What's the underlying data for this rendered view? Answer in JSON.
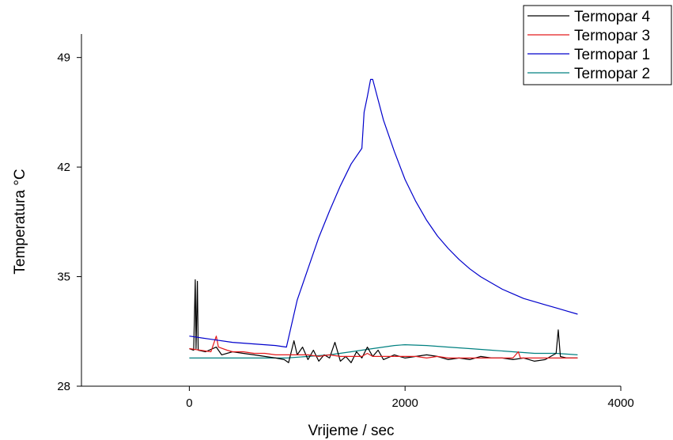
{
  "chart_data": {
    "type": "line",
    "xlabel": "Vrijeme / sec",
    "ylabel": "Temperatura °C",
    "xlim": [
      -1000,
      4000
    ],
    "ylim": [
      28,
      50.5
    ],
    "x_ticks": [
      0,
      2000,
      4000
    ],
    "y_ticks": [
      28,
      35,
      42,
      49
    ],
    "grid": false,
    "legend_position": "top-right",
    "series": [
      {
        "name": "Termopar 4",
        "color": "#000000",
        "points": [
          [
            0,
            30.4
          ],
          [
            40,
            30.3
          ],
          [
            55,
            34.8
          ],
          [
            62,
            30.4
          ],
          [
            75,
            34.7
          ],
          [
            82,
            30.3
          ],
          [
            150,
            30.2
          ],
          [
            250,
            30.5
          ],
          [
            300,
            30.0
          ],
          [
            400,
            30.2
          ],
          [
            500,
            30.1
          ],
          [
            600,
            30.0
          ],
          [
            700,
            29.9
          ],
          [
            800,
            29.8
          ],
          [
            880,
            29.7
          ],
          [
            920,
            29.5
          ],
          [
            970,
            30.9
          ],
          [
            1000,
            30.0
          ],
          [
            1050,
            30.5
          ],
          [
            1100,
            29.7
          ],
          [
            1150,
            30.3
          ],
          [
            1200,
            29.6
          ],
          [
            1250,
            30.0
          ],
          [
            1300,
            29.8
          ],
          [
            1350,
            30.8
          ],
          [
            1400,
            29.6
          ],
          [
            1450,
            29.9
          ],
          [
            1500,
            29.5
          ],
          [
            1550,
            30.2
          ],
          [
            1600,
            29.8
          ],
          [
            1650,
            30.5
          ],
          [
            1700,
            29.9
          ],
          [
            1750,
            30.3
          ],
          [
            1800,
            29.7
          ],
          [
            1900,
            30.0
          ],
          [
            2000,
            29.8
          ],
          [
            2100,
            29.9
          ],
          [
            2200,
            30.0
          ],
          [
            2300,
            29.9
          ],
          [
            2400,
            29.7
          ],
          [
            2500,
            29.8
          ],
          [
            2600,
            29.7
          ],
          [
            2700,
            29.9
          ],
          [
            2800,
            29.8
          ],
          [
            2900,
            29.8
          ],
          [
            3000,
            29.7
          ],
          [
            3100,
            29.8
          ],
          [
            3200,
            29.6
          ],
          [
            3300,
            29.7
          ],
          [
            3350,
            29.9
          ],
          [
            3400,
            30.1
          ],
          [
            3420,
            31.6
          ],
          [
            3440,
            29.9
          ],
          [
            3500,
            29.8
          ],
          [
            3600,
            29.8
          ]
        ]
      },
      {
        "name": "Termopar 3",
        "color": "#e31a1c",
        "points": [
          [
            0,
            30.4
          ],
          [
            100,
            30.3
          ],
          [
            200,
            30.2
          ],
          [
            250,
            31.2
          ],
          [
            270,
            30.5
          ],
          [
            350,
            30.3
          ],
          [
            400,
            30.2
          ],
          [
            500,
            30.2
          ],
          [
            600,
            30.1
          ],
          [
            700,
            30.1
          ],
          [
            800,
            30.0
          ],
          [
            900,
            30.0
          ],
          [
            1000,
            30.0
          ],
          [
            1100,
            30.0
          ],
          [
            1200,
            29.9
          ],
          [
            1300,
            30.0
          ],
          [
            1400,
            29.9
          ],
          [
            1500,
            29.9
          ],
          [
            1600,
            29.9
          ],
          [
            1650,
            30.1
          ],
          [
            1700,
            29.9
          ],
          [
            1800,
            29.9
          ],
          [
            1900,
            29.9
          ],
          [
            2000,
            29.9
          ],
          [
            2100,
            29.9
          ],
          [
            2200,
            29.8
          ],
          [
            2300,
            29.9
          ],
          [
            2400,
            29.8
          ],
          [
            2500,
            29.8
          ],
          [
            2600,
            29.8
          ],
          [
            2700,
            29.8
          ],
          [
            2800,
            29.8
          ],
          [
            2900,
            29.8
          ],
          [
            3000,
            29.8
          ],
          [
            3050,
            30.2
          ],
          [
            3070,
            29.8
          ],
          [
            3200,
            29.8
          ],
          [
            3300,
            29.8
          ],
          [
            3400,
            29.8
          ],
          [
            3500,
            29.8
          ],
          [
            3600,
            29.8
          ]
        ]
      },
      {
        "name": "Termopar 1",
        "color": "#0000cc",
        "points": [
          [
            0,
            31.2
          ],
          [
            200,
            31.0
          ],
          [
            400,
            30.8
          ],
          [
            600,
            30.7
          ],
          [
            800,
            30.6
          ],
          [
            900,
            30.5
          ],
          [
            1000,
            33.5
          ],
          [
            1100,
            35.5
          ],
          [
            1200,
            37.5
          ],
          [
            1300,
            39.2
          ],
          [
            1400,
            40.8
          ],
          [
            1500,
            42.2
          ],
          [
            1600,
            43.2
          ],
          [
            1620,
            45.5
          ],
          [
            1650,
            46.5
          ],
          [
            1680,
            47.6
          ],
          [
            1700,
            47.6
          ],
          [
            1750,
            46.3
          ],
          [
            1800,
            45.0
          ],
          [
            1900,
            43.0
          ],
          [
            2000,
            41.2
          ],
          [
            2100,
            39.8
          ],
          [
            2200,
            38.6
          ],
          [
            2300,
            37.6
          ],
          [
            2400,
            36.8
          ],
          [
            2500,
            36.1
          ],
          [
            2600,
            35.5
          ],
          [
            2700,
            35.0
          ],
          [
            2800,
            34.6
          ],
          [
            2900,
            34.2
          ],
          [
            3000,
            33.9
          ],
          [
            3100,
            33.6
          ],
          [
            3200,
            33.4
          ],
          [
            3300,
            33.2
          ],
          [
            3400,
            33.0
          ],
          [
            3500,
            32.8
          ],
          [
            3600,
            32.6
          ]
        ]
      },
      {
        "name": "Termopar 2",
        "color": "#008080",
        "points": [
          [
            0,
            29.8
          ],
          [
            300,
            29.8
          ],
          [
            600,
            29.8
          ],
          [
            900,
            29.8
          ],
          [
            1100,
            29.9
          ],
          [
            1300,
            30.0
          ],
          [
            1500,
            30.2
          ],
          [
            1700,
            30.4
          ],
          [
            1900,
            30.6
          ],
          [
            2000,
            30.65
          ],
          [
            2200,
            30.6
          ],
          [
            2400,
            30.5
          ],
          [
            2600,
            30.4
          ],
          [
            2800,
            30.3
          ],
          [
            3000,
            30.2
          ],
          [
            3200,
            30.1
          ],
          [
            3400,
            30.1
          ],
          [
            3600,
            30.0
          ]
        ]
      }
    ]
  }
}
